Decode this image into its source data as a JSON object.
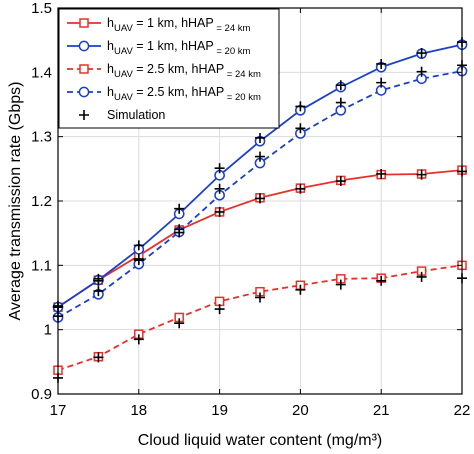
{
  "chart_data": {
    "type": "line",
    "xlabel": "Cloud liquid water content (mg/m³)",
    "ylabel": "Average transmission rate (Gbps)",
    "xlim": [
      17,
      22
    ],
    "ylim": [
      0.9,
      1.5
    ],
    "x_ticks": [
      "17",
      "18",
      "19",
      "20",
      "21",
      "22"
    ],
    "y_ticks": [
      "0.9",
      "1",
      "1.1",
      "1.2",
      "1.3",
      "1.4",
      "1.5"
    ],
    "grid": true,
    "legend_position": "top-left",
    "x": [
      17,
      17.5,
      18,
      18.5,
      19,
      19.5,
      20,
      20.5,
      21,
      21.5,
      22
    ],
    "series": [
      {
        "name": "h_UAV = 1 km, h_HAP = 24 km",
        "legend_parts": [
          [
            "h",
            "UAV",
            " = 1 km, h"
          ],
          [
            "HAP",
            " = 24 km"
          ]
        ],
        "color": "#e8302a",
        "line_style": "solid",
        "marker": "square",
        "values": [
          1.035,
          1.077,
          1.115,
          1.155,
          1.183,
          1.205,
          1.22,
          1.232,
          1.241,
          1.242,
          1.248
        ]
      },
      {
        "name": "h_UAV = 1 km, h_HAP = 20 km",
        "legend_parts": [
          [
            "h",
            "UAV",
            " = 1 km, h"
          ],
          [
            "HAP",
            " = 20 km"
          ]
        ],
        "color": "#1a3fc8",
        "line_style": "solid",
        "marker": "circle",
        "values": [
          1.035,
          1.077,
          1.125,
          1.18,
          1.24,
          1.293,
          1.341,
          1.377,
          1.408,
          1.429,
          1.443
        ]
      },
      {
        "name": "h_UAV = 2.5 km, h_HAP = 24 km",
        "legend_parts": [
          [
            "h",
            "UAV",
            " = 2.5 km, h"
          ],
          [
            "HAP",
            " = 24 km"
          ]
        ],
        "color": "#e8302a",
        "line_style": "dashed",
        "marker": "square",
        "values": [
          0.937,
          0.958,
          0.993,
          1.019,
          1.044,
          1.059,
          1.069,
          1.079,
          1.08,
          1.091,
          1.1
        ]
      },
      {
        "name": "h_UAV = 2.5 km, h_HAP = 20 km",
        "legend_parts": [
          [
            "h",
            "UAV",
            " = 2.5 km, h"
          ],
          [
            "HAP",
            " = 20 km"
          ]
        ],
        "color": "#1a3fc8",
        "line_style": "dashed",
        "marker": "circle",
        "values": [
          1.019,
          1.055,
          1.102,
          1.152,
          1.209,
          1.259,
          1.305,
          1.341,
          1.372,
          1.39,
          1.402
        ]
      }
    ],
    "simulation": {
      "name": "Simulation",
      "marker": "plus",
      "color": "#000000",
      "groups": [
        [
          1.035,
          1.076,
          1.11,
          1.151,
          1.183,
          1.204,
          1.219,
          1.231,
          1.242,
          1.241,
          1.246
        ],
        [
          1.037,
          1.079,
          1.131,
          1.188,
          1.251,
          1.298,
          1.347,
          1.38,
          1.413,
          1.43,
          1.447
        ],
        [
          0.925,
          0.957,
          0.985,
          1.01,
          1.032,
          1.05,
          1.062,
          1.07,
          1.076,
          1.082,
          1.08
        ],
        [
          1.021,
          1.06,
          1.108,
          1.156,
          1.219,
          1.269,
          1.313,
          1.353,
          1.384,
          1.401,
          1.411
        ]
      ]
    }
  }
}
